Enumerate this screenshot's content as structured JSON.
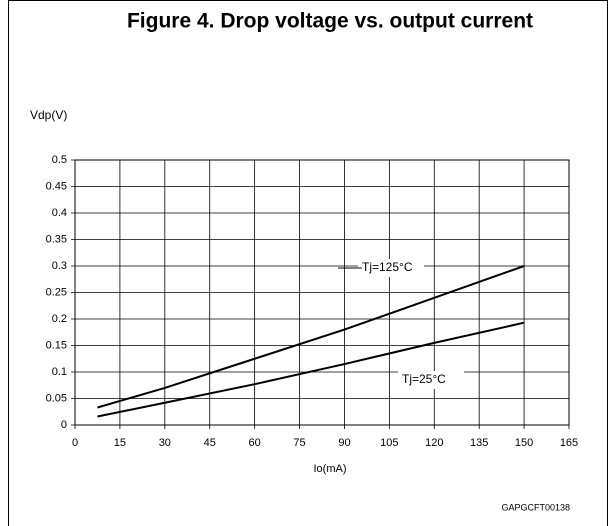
{
  "chart_data": {
    "type": "line",
    "title": "Figure 4. Drop voltage vs. output current",
    "y_label": "Vdp(V)",
    "x_label": "Io(mA)",
    "annotation": "GAPGCFT00138",
    "x": [
      7.5,
      30,
      60,
      90,
      120,
      150
    ],
    "series": [
      {
        "name": "Tj=125°C",
        "color": "#000000",
        "values": [
          0.033,
          0.07,
          0.125,
          0.18,
          0.24,
          0.3
        ]
      },
      {
        "name": "Tj=25°C",
        "color": "#000000",
        "values": [
          0.016,
          0.042,
          0.077,
          0.115,
          0.155,
          0.193
        ]
      }
    ],
    "xlim": [
      0,
      165
    ],
    "xticks": [
      0,
      15,
      30,
      45,
      60,
      75,
      90,
      105,
      120,
      135,
      150,
      165
    ],
    "ylim": [
      0,
      0.5
    ],
    "yticks": [
      0,
      0.05,
      0.1,
      0.15,
      0.2,
      0.25,
      0.3,
      0.35,
      0.4,
      0.45,
      0.5
    ],
    "grid": true
  }
}
